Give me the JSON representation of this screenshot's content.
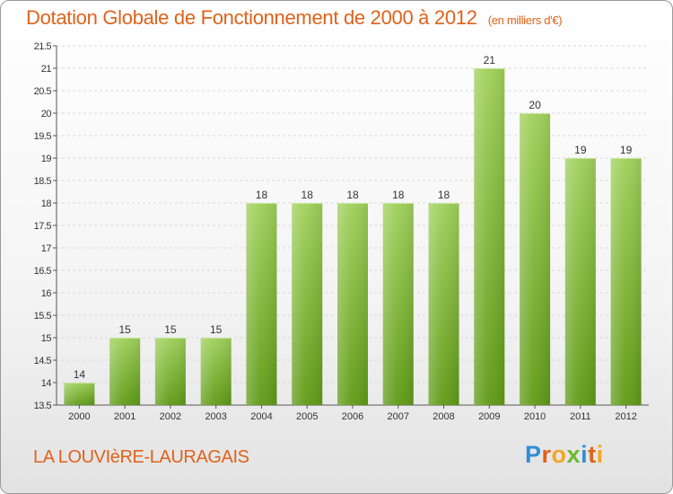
{
  "header": {
    "title": "Dotation Globale de Fonctionnement de 2000 à 2012",
    "subtitle": "(en milliers d'€)"
  },
  "footer": {
    "place": "LA LOUVIèRE-LAURAGAIS",
    "logo": "Proxiti"
  },
  "colors": {
    "title": "#e0621a",
    "bar_top": "#9fd05a",
    "bar_bottom": "#5f9a16",
    "grid": "#d8d8d8",
    "logo_letters": [
      "#2f8fd8",
      "#e0621a",
      "#f5a623",
      "#6bb82e",
      "#2f8fd8",
      "#e0621a",
      "#f5a623"
    ]
  },
  "chart_data": {
    "type": "bar",
    "title": "Dotation Globale de Fonctionnement de 2000 à 2012",
    "subtitle": "(en milliers d'€)",
    "categories": [
      "2000",
      "2001",
      "2002",
      "2003",
      "2004",
      "2005",
      "2006",
      "2007",
      "2008",
      "2009",
      "2010",
      "2011",
      "2012"
    ],
    "values": [
      14,
      15,
      15,
      15,
      18,
      18,
      18,
      18,
      18,
      21,
      20,
      19,
      19
    ],
    "ylim": [
      13.5,
      21.5
    ],
    "yticks": [
      "13.5",
      "14",
      "14.5",
      "15",
      "15.5",
      "16",
      "16.5",
      "17",
      "17.5",
      "18",
      "18.5",
      "19",
      "19.5",
      "20",
      "20.5",
      "21",
      "21.5"
    ],
    "grid": true,
    "legend": "none"
  }
}
